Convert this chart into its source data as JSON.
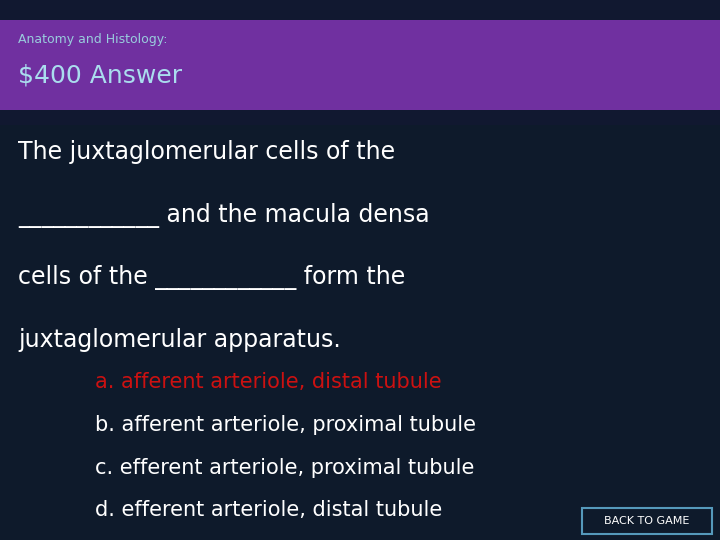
{
  "bg_color": "#0e1a2b",
  "header_top_color": "#111830",
  "header_bar_color": "#7030a0",
  "header_small_text": "Anatomy and Histology:",
  "header_small_color": "#99ccdd",
  "header_large_text": "$400 Answer",
  "header_large_color": "#aaddee",
  "body_text_color": "#ffffff",
  "answer_color": "#cc1111",
  "body_line1": "The juxtaglomerular cells of the",
  "body_line2": "____________ and the macula densa",
  "body_line3": "cells of the ____________ form the",
  "body_line4": "juxtaglomerular apparatus.",
  "answer_a": "a. afferent arteriole, distal tubule",
  "answer_b": "b. afferent arteriole, proximal tubule",
  "answer_c": "c. efferent arteriole, proximal tubule",
  "answer_d": "d. efferent arteriole, distal tubule",
  "back_btn_text": "BACK TO GAME",
  "back_btn_bg": "#0e1a2b",
  "back_btn_border": "#5599bb",
  "small_font": 9,
  "large_font": 18,
  "body_font": 17,
  "answer_font": 15
}
